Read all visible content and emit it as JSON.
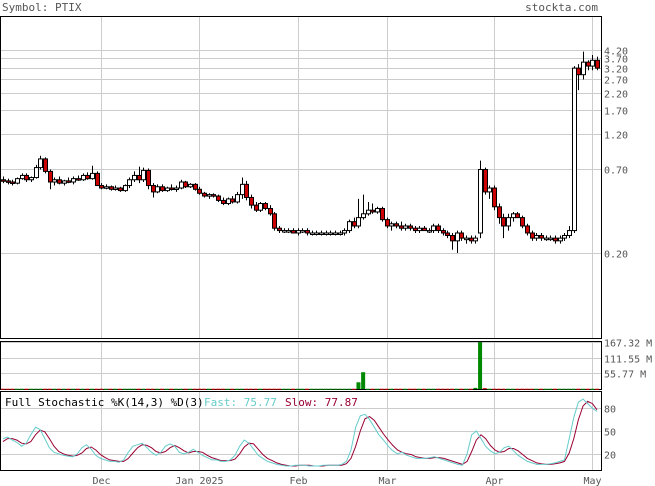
{
  "header": {
    "symbol_label": "Symbol: PTIX",
    "site": "stockta.com"
  },
  "stochastic": {
    "title": "Full Stochastic %K(14,3) %D(3)",
    "fast_label": "Fast: 75.77",
    "slow_label": "Slow: 77.87",
    "fast_color": "#66cccc",
    "slow_color": "#990033",
    "ticks": [
      "80",
      "50",
      "20"
    ]
  },
  "colors": {
    "up": "#ffffff",
    "down": "#cc0000",
    "volume": "#008800",
    "grid": "#cccccc"
  },
  "chart_data": {
    "type": "candlestick",
    "price_scale": "log",
    "price_ticks": [
      "4.20",
      "3.70",
      "3.20",
      "2.70",
      "2.20",
      "1.70",
      "1.20",
      "0.70",
      "0.20"
    ],
    "volume_ticks": [
      "167.32 M",
      "111.55 M",
      "55.77 M"
    ],
    "x_labels": [
      "Dec",
      "Jan 2025",
      "Feb",
      "Mar",
      "Apr",
      "May"
    ],
    "candles": [
      [
        0.6,
        0.63,
        0.57,
        0.59
      ],
      [
        0.59,
        0.61,
        0.56,
        0.58
      ],
      [
        0.58,
        0.6,
        0.55,
        0.57
      ],
      [
        0.57,
        0.62,
        0.56,
        0.61
      ],
      [
        0.61,
        0.66,
        0.6,
        0.64
      ],
      [
        0.64,
        0.66,
        0.58,
        0.6
      ],
      [
        0.6,
        0.63,
        0.58,
        0.62
      ],
      [
        0.62,
        0.75,
        0.61,
        0.72
      ],
      [
        0.72,
        0.86,
        0.7,
        0.82
      ],
      [
        0.82,
        0.84,
        0.66,
        0.68
      ],
      [
        0.68,
        0.7,
        0.52,
        0.58
      ],
      [
        0.58,
        0.62,
        0.55,
        0.6
      ],
      [
        0.6,
        0.63,
        0.56,
        0.57
      ],
      [
        0.57,
        0.6,
        0.55,
        0.59
      ],
      [
        0.59,
        0.62,
        0.57,
        0.58
      ],
      [
        0.58,
        0.63,
        0.56,
        0.61
      ],
      [
        0.61,
        0.64,
        0.59,
        0.6
      ],
      [
        0.6,
        0.66,
        0.59,
        0.64
      ],
      [
        0.64,
        0.67,
        0.6,
        0.61
      ],
      [
        0.61,
        0.74,
        0.6,
        0.66
      ],
      [
        0.66,
        0.68,
        0.58,
        0.55
      ],
      [
        0.55,
        0.57,
        0.52,
        0.53
      ],
      [
        0.53,
        0.56,
        0.52,
        0.54
      ],
      [
        0.54,
        0.55,
        0.51,
        0.52
      ],
      [
        0.52,
        0.55,
        0.51,
        0.53
      ],
      [
        0.53,
        0.54,
        0.5,
        0.51
      ],
      [
        0.51,
        0.56,
        0.5,
        0.55
      ],
      [
        0.55,
        0.62,
        0.53,
        0.6
      ],
      [
        0.6,
        0.68,
        0.58,
        0.64
      ],
      [
        0.64,
        0.73,
        0.57,
        0.6
      ],
      [
        0.6,
        0.72,
        0.58,
        0.69
      ],
      [
        0.69,
        0.71,
        0.52,
        0.55
      ],
      [
        0.55,
        0.57,
        0.46,
        0.5
      ],
      [
        0.5,
        0.56,
        0.49,
        0.54
      ],
      [
        0.54,
        0.56,
        0.5,
        0.51
      ],
      [
        0.51,
        0.54,
        0.5,
        0.53
      ],
      [
        0.53,
        0.56,
        0.51,
        0.52
      ],
      [
        0.52,
        0.55,
        0.5,
        0.53
      ],
      [
        0.53,
        0.6,
        0.52,
        0.58
      ],
      [
        0.58,
        0.59,
        0.53,
        0.54
      ],
      [
        0.54,
        0.57,
        0.53,
        0.56
      ],
      [
        0.56,
        0.57,
        0.51,
        0.52
      ],
      [
        0.52,
        0.54,
        0.48,
        0.49
      ],
      [
        0.49,
        0.5,
        0.46,
        0.47
      ],
      [
        0.47,
        0.49,
        0.45,
        0.48
      ],
      [
        0.48,
        0.49,
        0.46,
        0.47
      ],
      [
        0.47,
        0.48,
        0.43,
        0.44
      ],
      [
        0.44,
        0.46,
        0.41,
        0.42
      ],
      [
        0.42,
        0.46,
        0.41,
        0.45
      ],
      [
        0.45,
        0.47,
        0.42,
        0.43
      ],
      [
        0.43,
        0.5,
        0.42,
        0.48
      ],
      [
        0.48,
        0.62,
        0.45,
        0.56
      ],
      [
        0.56,
        0.59,
        0.44,
        0.46
      ],
      [
        0.46,
        0.48,
        0.39,
        0.41
      ],
      [
        0.41,
        0.43,
        0.37,
        0.38
      ],
      [
        0.38,
        0.43,
        0.37,
        0.42
      ],
      [
        0.42,
        0.43,
        0.38,
        0.39
      ],
      [
        0.39,
        0.41,
        0.35,
        0.36
      ],
      [
        0.36,
        0.37,
        0.28,
        0.29
      ],
      [
        0.29,
        0.3,
        0.27,
        0.28
      ],
      [
        0.28,
        0.29,
        0.27,
        0.28
      ],
      [
        0.28,
        0.29,
        0.27,
        0.28
      ],
      [
        0.28,
        0.29,
        0.27,
        0.27
      ],
      [
        0.27,
        0.29,
        0.26,
        0.28
      ],
      [
        0.28,
        0.29,
        0.27,
        0.28
      ],
      [
        0.28,
        0.29,
        0.26,
        0.27
      ],
      [
        0.27,
        0.28,
        0.26,
        0.27
      ],
      [
        0.27,
        0.28,
        0.26,
        0.27
      ],
      [
        0.27,
        0.28,
        0.26,
        0.27
      ],
      [
        0.27,
        0.28,
        0.26,
        0.27
      ],
      [
        0.27,
        0.28,
        0.26,
        0.27
      ],
      [
        0.27,
        0.28,
        0.26,
        0.27
      ],
      [
        0.27,
        0.28,
        0.26,
        0.27
      ],
      [
        0.27,
        0.29,
        0.26,
        0.28
      ],
      [
        0.28,
        0.33,
        0.27,
        0.32
      ],
      [
        0.32,
        0.34,
        0.29,
        0.3
      ],
      [
        0.3,
        0.45,
        0.29,
        0.34
      ],
      [
        0.34,
        0.48,
        0.33,
        0.36
      ],
      [
        0.36,
        0.43,
        0.35,
        0.38
      ],
      [
        0.38,
        0.42,
        0.36,
        0.37
      ],
      [
        0.37,
        0.4,
        0.36,
        0.39
      ],
      [
        0.39,
        0.4,
        0.32,
        0.33
      ],
      [
        0.33,
        0.34,
        0.29,
        0.3
      ],
      [
        0.3,
        0.32,
        0.28,
        0.31
      ],
      [
        0.31,
        0.32,
        0.29,
        0.3
      ],
      [
        0.3,
        0.32,
        0.28,
        0.29
      ],
      [
        0.29,
        0.31,
        0.28,
        0.3
      ],
      [
        0.3,
        0.31,
        0.28,
        0.29
      ],
      [
        0.29,
        0.3,
        0.27,
        0.28
      ],
      [
        0.28,
        0.3,
        0.27,
        0.29
      ],
      [
        0.29,
        0.3,
        0.28,
        0.28
      ],
      [
        0.28,
        0.29,
        0.27,
        0.28
      ],
      [
        0.28,
        0.31,
        0.27,
        0.3
      ],
      [
        0.3,
        0.31,
        0.27,
        0.28
      ],
      [
        0.28,
        0.29,
        0.26,
        0.27
      ],
      [
        0.27,
        0.28,
        0.25,
        0.26
      ],
      [
        0.26,
        0.27,
        0.21,
        0.24
      ],
      [
        0.24,
        0.28,
        0.2,
        0.27
      ],
      [
        0.27,
        0.28,
        0.24,
        0.25
      ],
      [
        0.25,
        0.26,
        0.23,
        0.25
      ],
      [
        0.25,
        0.26,
        0.23,
        0.24
      ],
      [
        0.24,
        0.26,
        0.23,
        0.25
      ],
      [
        0.27,
        0.8,
        0.25,
        0.7
      ],
      [
        0.7,
        0.72,
        0.48,
        0.5
      ],
      [
        0.5,
        0.55,
        0.45,
        0.53
      ],
      [
        0.53,
        0.55,
        0.38,
        0.4
      ],
      [
        0.4,
        0.42,
        0.31,
        0.34
      ],
      [
        0.34,
        0.36,
        0.25,
        0.3
      ],
      [
        0.3,
        0.36,
        0.28,
        0.34
      ],
      [
        0.34,
        0.37,
        0.32,
        0.36
      ],
      [
        0.36,
        0.37,
        0.34,
        0.34
      ],
      [
        0.34,
        0.35,
        0.29,
        0.3
      ],
      [
        0.3,
        0.31,
        0.26,
        0.27
      ],
      [
        0.27,
        0.28,
        0.24,
        0.25
      ],
      [
        0.25,
        0.27,
        0.24,
        0.26
      ],
      [
        0.26,
        0.27,
        0.24,
        0.25
      ],
      [
        0.25,
        0.26,
        0.24,
        0.25
      ],
      [
        0.25,
        0.26,
        0.24,
        0.25
      ],
      [
        0.25,
        0.26,
        0.23,
        0.24
      ],
      [
        0.24,
        0.26,
        0.23,
        0.25
      ],
      [
        0.25,
        0.27,
        0.24,
        0.26
      ],
      [
        0.26,
        0.3,
        0.25,
        0.28
      ],
      [
        0.28,
        3.3,
        0.27,
        3.2
      ],
      [
        3.2,
        3.4,
        2.3,
        2.9
      ],
      [
        2.9,
        4.1,
        2.7,
        3.5
      ],
      [
        3.5,
        3.6,
        3.1,
        3.3
      ],
      [
        3.3,
        3.9,
        3.1,
        3.6
      ],
      [
        3.6,
        3.8,
        3.1,
        3.2
      ]
    ],
    "volume_spikes": [
      {
        "index": 76,
        "value": 24
      },
      {
        "index": 77,
        "value": 60
      },
      {
        "index": 101,
        "value": 4
      },
      {
        "index": 102,
        "value": 168
      },
      {
        "index": 103,
        "value": 3
      }
    ],
    "volume_baseline": 1,
    "stoch_fast": [
      40,
      42,
      38,
      35,
      30,
      34,
      45,
      55,
      52,
      40,
      28,
      22,
      20,
      18,
      17,
      16,
      20,
      28,
      32,
      26,
      18,
      14,
      12,
      10,
      10,
      9,
      12,
      22,
      30,
      32,
      34,
      28,
      22,
      18,
      22,
      30,
      33,
      30,
      22,
      20,
      22,
      26,
      22,
      18,
      15,
      12,
      12,
      10,
      10,
      12,
      18,
      30,
      38,
      34,
      26,
      18,
      14,
      10,
      8,
      6,
      5,
      4,
      4,
      5,
      5,
      5,
      4,
      4,
      4,
      5,
      5,
      5,
      5,
      6,
      10,
      25,
      55,
      70,
      72,
      65,
      55,
      45,
      38,
      30,
      24,
      20,
      22,
      18,
      16,
      14,
      14,
      14,
      15,
      16,
      14,
      12,
      10,
      8,
      6,
      5,
      20,
      45,
      50,
      40,
      30,
      24,
      20,
      22,
      28,
      30,
      24,
      18,
      14,
      10,
      8,
      6,
      6,
      6,
      7,
      8,
      10,
      12,
      40,
      68,
      88,
      92,
      86,
      80,
      75.77
    ],
    "stoch_slow": [
      36,
      40,
      40,
      38,
      34,
      33,
      36,
      45,
      51,
      49,
      40,
      30,
      23,
      20,
      18,
      17,
      18,
      21,
      27,
      29,
      25,
      19,
      15,
      12,
      11,
      10,
      10,
      14,
      21,
      28,
      32,
      31,
      28,
      23,
      21,
      23,
      28,
      31,
      28,
      24,
      21,
      23,
      23,
      22,
      18,
      15,
      13,
      11,
      11,
      11,
      13,
      20,
      29,
      34,
      33,
      26,
      19,
      14,
      11,
      8,
      6,
      5,
      4,
      4,
      5,
      5,
      5,
      4,
      4,
      4,
      5,
      5,
      5,
      5,
      7,
      14,
      30,
      50,
      66,
      69,
      64,
      55,
      46,
      38,
      31,
      25,
      22,
      20,
      19,
      16,
      15,
      14,
      14,
      15,
      15,
      14,
      12,
      10,
      8,
      6,
      10,
      23,
      38,
      45,
      40,
      31,
      25,
      22,
      23,
      27,
      27,
      24,
      19,
      14,
      11,
      8,
      7,
      6,
      6,
      7,
      8,
      10,
      21,
      40,
      65,
      83,
      89,
      86,
      77.87
    ]
  }
}
